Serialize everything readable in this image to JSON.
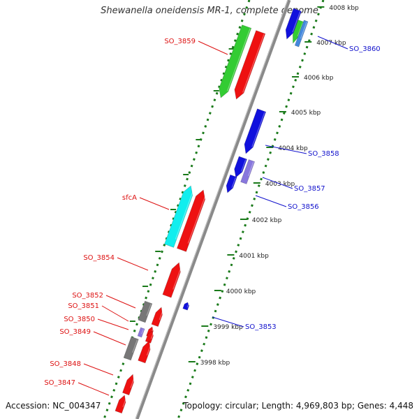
{
  "title": "Shewanella oneidensis MR-1, complete genome",
  "accession": "Accession: NC_004347",
  "topology": "Topology: circular; Length: 4,969,803 bp; Genes: 4,448",
  "colors": {
    "backbone": "#8a8a8a",
    "ticks": "#1a7a1a",
    "red": "#ee1111",
    "blue": "#1111dd",
    "green": "#33cc33",
    "cyan": "#11eeee",
    "grey": "#777777",
    "purple": "#8877dd",
    "red_label": "#dd1111",
    "blue_label": "#1111cc"
  },
  "scale_ticks": [
    "3998 kbp",
    "3999 kbp",
    "4000 kbp",
    "4001 kbp",
    "4002 kbp",
    "4003 kbp",
    "4004 kbp",
    "4005 kbp",
    "4006 kbp",
    "4007 kbp",
    "4008 kbp"
  ],
  "labels_left": [
    "SO_3859",
    "sfcA",
    "SO_3854",
    "SO_3852",
    "SO_3851",
    "SO_3850",
    "SO_3849",
    "SO_3848",
    "SO_3847"
  ],
  "labels_right": [
    "SO_3860",
    "SO_3858",
    "SO_3857",
    "SO_3856",
    "SO_3853"
  ]
}
